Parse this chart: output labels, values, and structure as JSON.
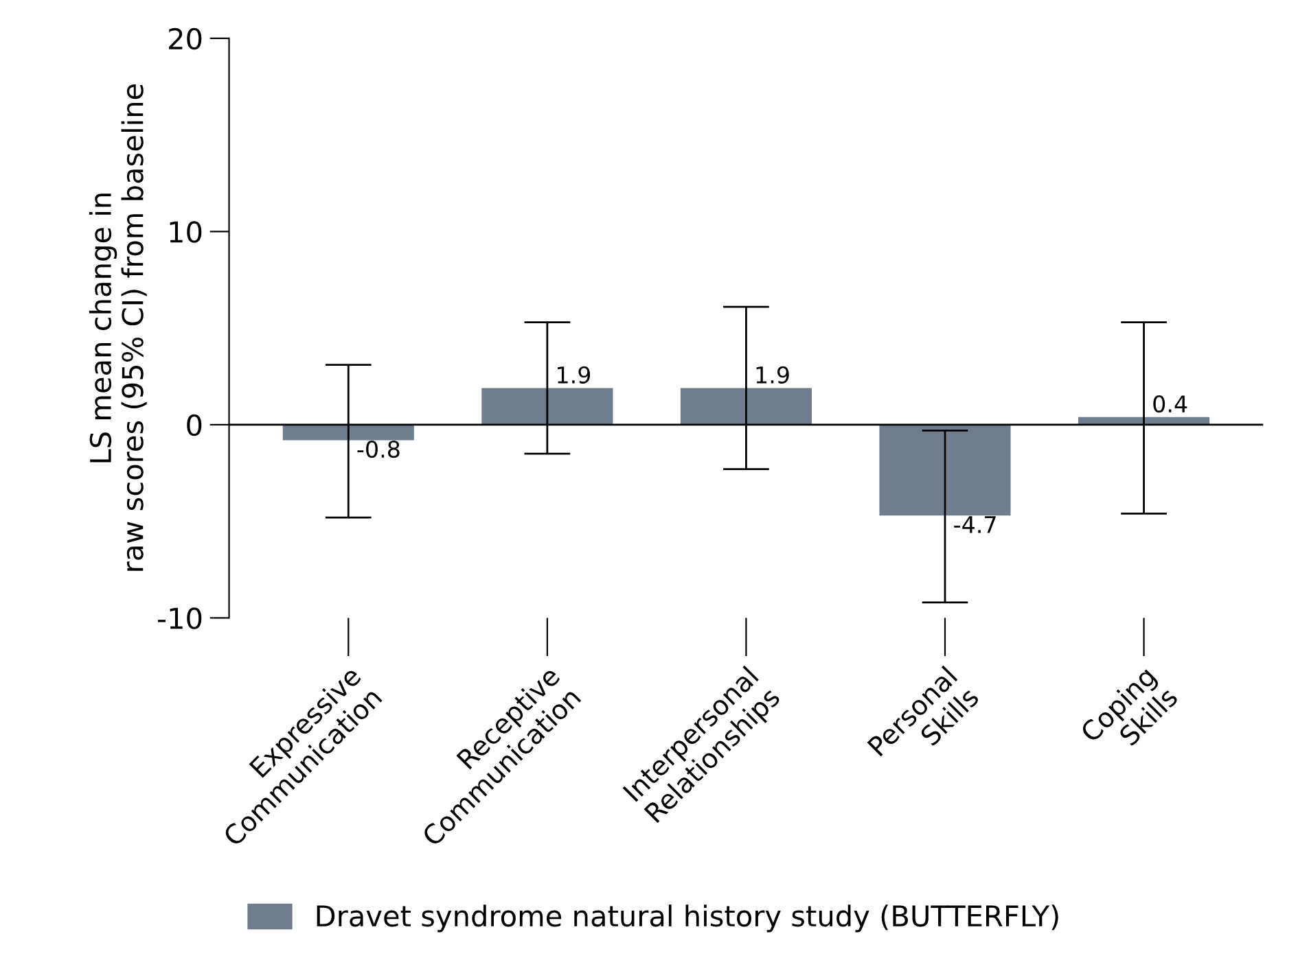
{
  "chart_data": {
    "type": "bar",
    "ylabel": "LS mean change in\nraw scores (95% CI) from baseline",
    "categories": [
      "Expressive\nCommunication",
      "Receptive\nCommunication",
      "Interpersonal\nRelationships",
      "Personal\nSkills",
      "Coping\nSkills"
    ],
    "series": [
      {
        "name": "Dravet syndrome natural history study (BUTTERFLY)",
        "color": "#707d8d",
        "values": [
          -0.8,
          1.9,
          1.9,
          -4.7,
          0.4
        ],
        "errors": [
          [
            -4.8,
            3.1
          ],
          [
            -1.5,
            5.3
          ],
          [
            -2.3,
            6.1
          ],
          [
            -9.2,
            -0.3
          ],
          [
            -4.6,
            5.3
          ]
        ],
        "value_labels": [
          "-0.8",
          "1.9",
          "1.9",
          "-4.7",
          "0.4"
        ]
      }
    ],
    "ylim": [
      -10,
      20
    ],
    "yticks": [
      -10,
      0,
      10,
      20
    ],
    "grid": false,
    "legend": "bottom",
    "ref_lines": [
      {
        "axis": "y",
        "value": 0,
        "label": null,
        "color": "#000000"
      }
    ]
  }
}
